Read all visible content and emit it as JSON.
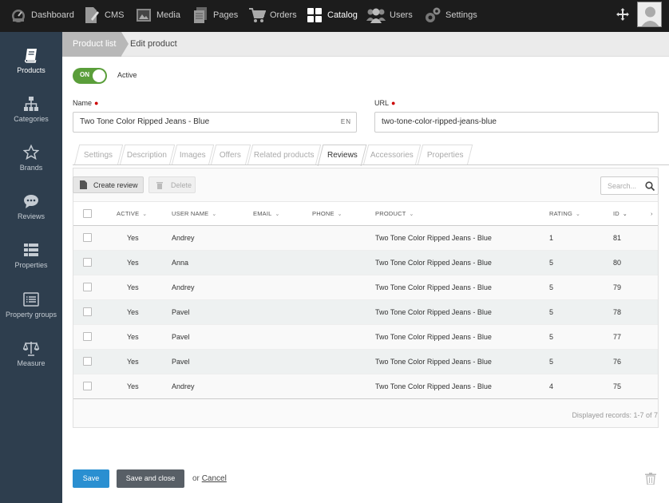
{
  "topnav": {
    "items": [
      {
        "label": "Dashboard",
        "icon": "dashboard-icon"
      },
      {
        "label": "CMS",
        "icon": "cms-icon"
      },
      {
        "label": "Media",
        "icon": "media-icon"
      },
      {
        "label": "Pages",
        "icon": "pages-icon"
      },
      {
        "label": "Orders",
        "icon": "cart-icon"
      },
      {
        "label": "Catalog",
        "icon": "catalog-icon"
      },
      {
        "label": "Users",
        "icon": "users-icon"
      },
      {
        "label": "Settings",
        "icon": "gear-icon"
      }
    ],
    "active": "Catalog"
  },
  "sidebar": {
    "items": [
      {
        "label": "Products",
        "icon": "book-icon"
      },
      {
        "label": "Categories",
        "icon": "sitemap-icon"
      },
      {
        "label": "Brands",
        "icon": "star-icon"
      },
      {
        "label": "Reviews",
        "icon": "comment-icon"
      },
      {
        "label": "Properties",
        "icon": "list-icon"
      },
      {
        "label": "Property groups",
        "icon": "list-box-icon"
      },
      {
        "label": "Measure",
        "icon": "balance-icon"
      }
    ],
    "active": "Products"
  },
  "breadcrumb": {
    "parent": "Product list",
    "current": "Edit product"
  },
  "toggle": {
    "state": "ON",
    "label": "Active"
  },
  "form": {
    "name_label": "Name",
    "name_value": "Two Tone Color Ripped Jeans - Blue",
    "name_lang": "EN",
    "url_label": "URL",
    "url_value": "two-tone-color-ripped-jeans-blue"
  },
  "tabs": [
    "Settings",
    "Description",
    "Images",
    "Offers",
    "Related products",
    "Reviews",
    "Accessories",
    "Properties"
  ],
  "active_tab": "Reviews",
  "toolbar": {
    "create_label": "Create review",
    "delete_label": "Delete",
    "search_placeholder": "Search..."
  },
  "table": {
    "headers": [
      "ACTIVE",
      "USER NAME",
      "EMAIL",
      "PHONE",
      "PRODUCT",
      "RATING",
      "ID"
    ],
    "rows": [
      {
        "active": "Yes",
        "user": "Andrey",
        "email": "",
        "phone": "",
        "product": "Two Tone Color Ripped Jeans - Blue",
        "rating": "1",
        "id": "81"
      },
      {
        "active": "Yes",
        "user": "Anna",
        "email": "",
        "phone": "",
        "product": "Two Tone Color Ripped Jeans - Blue",
        "rating": "5",
        "id": "80"
      },
      {
        "active": "Yes",
        "user": "Andrey",
        "email": "",
        "phone": "",
        "product": "Two Tone Color Ripped Jeans - Blue",
        "rating": "5",
        "id": "79"
      },
      {
        "active": "Yes",
        "user": "Pavel",
        "email": "",
        "phone": "",
        "product": "Two Tone Color Ripped Jeans - Blue",
        "rating": "5",
        "id": "78"
      },
      {
        "active": "Yes",
        "user": "Pavel",
        "email": "",
        "phone": "",
        "product": "Two Tone Color Ripped Jeans - Blue",
        "rating": "5",
        "id": "77"
      },
      {
        "active": "Yes",
        "user": "Pavel",
        "email": "",
        "phone": "",
        "product": "Two Tone Color Ripped Jeans - Blue",
        "rating": "5",
        "id": "76"
      },
      {
        "active": "Yes",
        "user": "Andrey",
        "email": "",
        "phone": "",
        "product": "Two Tone Color Ripped Jeans - Blue",
        "rating": "4",
        "id": "75"
      }
    ],
    "records_text": "Displayed records: 1-7 of 7"
  },
  "bottom": {
    "save_label": "Save",
    "save_close_label": "Save and close",
    "or_text": "or",
    "cancel_label": "Cancel"
  },
  "colors": {
    "accent_blue": "#2a8fd1",
    "toggle_green": "#5a9e3a",
    "sidebar_bg": "#2e3e4e",
    "topbar_bg": "#1c1c1c"
  }
}
